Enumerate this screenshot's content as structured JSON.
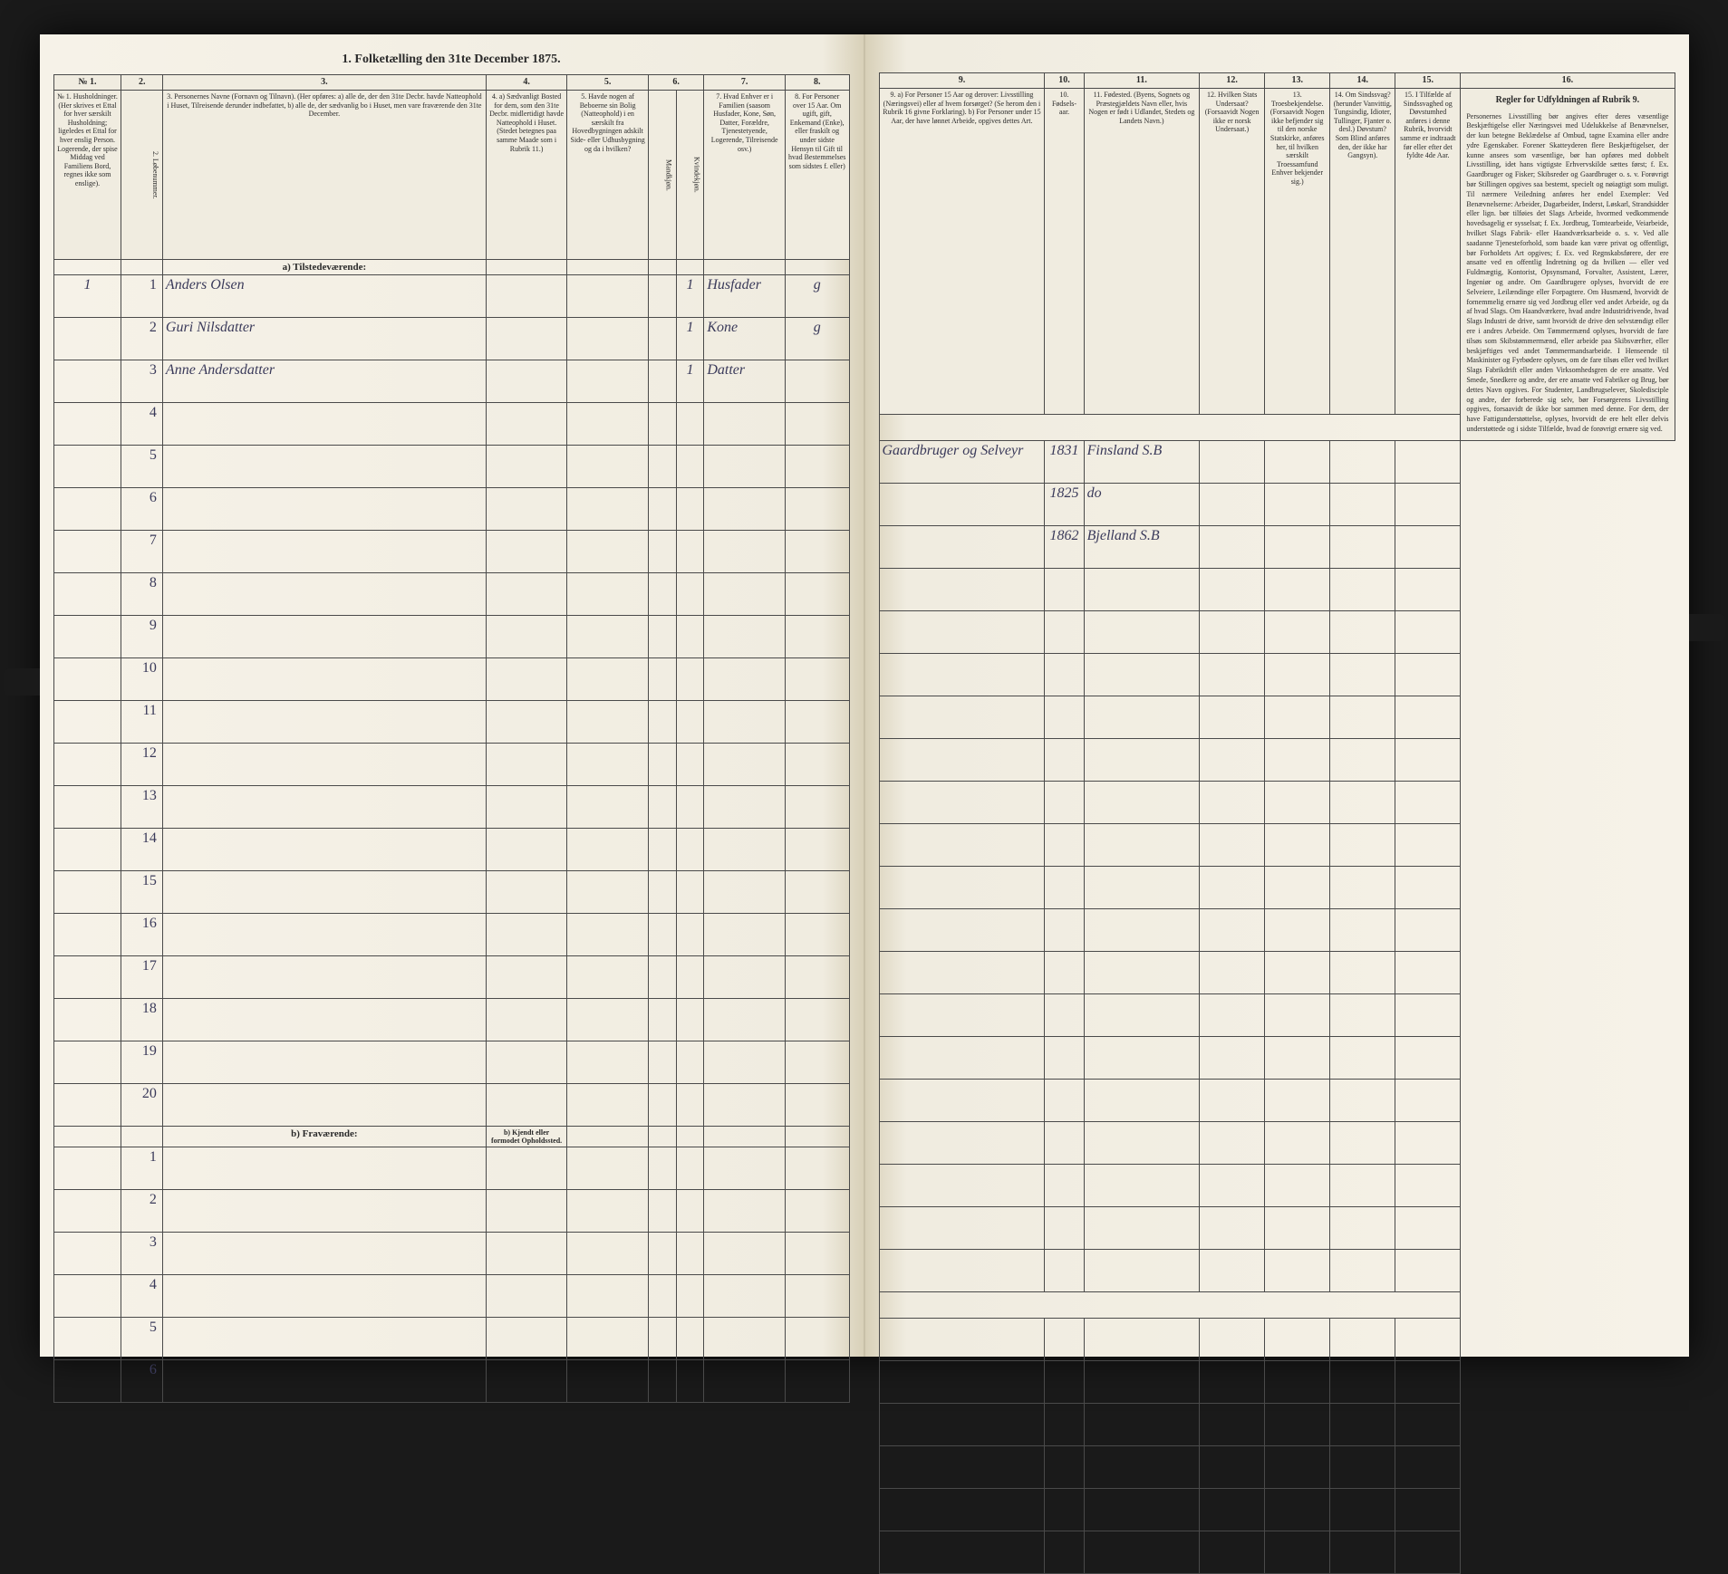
{
  "header": {
    "title_left": "1. Folketælling den 31te December 1875.",
    "title_right": ""
  },
  "columns_left": {
    "1": "№ 1.\nHusholdninger.\n(Her skrives et Ettal for hver særskilt Husholdning; ligeledes et Ettal for hver enslig Person. Logerende, der spise Middag ved Familiens Bord, regnes ikke som enslige).",
    "2": "2.\nLøbenummer.",
    "3": "3.\nPersonernes Navne (Fornavn og Tilnavn).\n(Her opføres:\na) alle de, der den 31te Decbr. havde Natteophold i Huset, Tilreisende derunder indbefattet,\nb) alle de, der sædvanlig bo i Huset, men vare fraværende den 31te December.",
    "4": "4.\na) Sædvanligt Bosted for dem, som den 31te Decbr. midlertidigt havde Natteophold i Huset.\n(Stedet betegnes paa samme Maade som i Rubrik 11.)",
    "5": "5.\nHavde nogen af Beboerne sin Bolig (Natteophold) i en særskilt fra Hovedbygningen adskilt Side- eller Udhusbygning og da i hvilken?",
    "6": "6.\nKjøn.\n(Her sættes et Ettal i vedkommende Rubrik.)",
    "6a": "Mandkjøn.",
    "6b": "Kvindekjøn.",
    "7": "7.\nHvad Enhver er i Familien\n(saasom Husfader, Kone, Søn, Datter, Forældre, Tjenestetyende, Logerende, Tilreisende osv.)",
    "8": "8.\nFor Personer over 15 Aar. Om ugift, gift, Enkemand (Enke), eller fraskilt og under sidste Hensyn til Gift til hvad Bestemmelses som sidstes f. eller)"
  },
  "columns_right": {
    "9": "9.\na) For Personer 15 Aar og derover: Livsstilling (Næringsvei) eller af hvem forsørget? (Se herom den i Rubrik 16 givne Forklaring).\nb) For Personer under 15 Aar, der have lønnet Arbeide, opgives dettes Art.",
    "10": "10.\nFødsels-aar.",
    "11": "11.\nFødested.\n(Byens, Sognets og Præstegjældets Navn eller, hvis Nogen er født i Udlandet, Stedets og Landets Navn.)",
    "12": "12.\nHvilken Stats Undersaat?\n(Forsaavidt Nogen ikke er norsk Undersaat.)",
    "13": "13.\nTroesbekjendelse.\n(Forsaavidt Nogen ikke befjender sig til den norske Statskirke, anføres her, til hvilken særskilt Troessamfund Enhver bekjender sig.)",
    "14": "14.\nOm Sindssvag? (herunder Vanvittig, Tungsindig, Idioter, Tullinger, Fjanter o. desl.) Døvstum? Som Blind anføres den, der ikke har Gangsyn).",
    "15": "15.\nI Tilfælde af Sindssvaghed og Døvstumhed anføres i denne Rubrik, hvorvidt samme er indtraadt før eller efter det fyldte 4de Aar.",
    "16": "16.\nRegler for Udfyldningen af Rubrik 9."
  },
  "sections": {
    "a": "a) Tilstedeværende:",
    "b": "b) Fraværende:",
    "b_note": "b) Kjendt eller formodet Opholdssted."
  },
  "rows": [
    {
      "n": "1",
      "hh": "1",
      "name": "Anders Olsen",
      "sex": "1",
      "fam": "Husfader",
      "civ": "g",
      "occ": "Gaardbruger og Selveyr",
      "year": "1831",
      "place": "Finsland S.B"
    },
    {
      "n": "2",
      "hh": "",
      "name": "Guri Nilsdatter",
      "sex": "1",
      "fam": "Kone",
      "civ": "g",
      "occ": "",
      "year": "1825",
      "place": "do"
    },
    {
      "n": "3",
      "hh": "",
      "name": "Anne Andersdatter",
      "sex": "1",
      "fam": "Datter",
      "civ": "",
      "occ": "",
      "year": "1862",
      "place": "Bjelland S.B"
    }
  ],
  "empty_rows_a": [
    "4",
    "5",
    "6",
    "7",
    "8",
    "9",
    "10",
    "11",
    "12",
    "13",
    "14",
    "15",
    "16",
    "17",
    "18",
    "19",
    "20"
  ],
  "empty_rows_b": [
    "1",
    "2",
    "3",
    "4",
    "5",
    "6"
  ],
  "rules_text": {
    "title": "Regler for Udfyldningen\naf\nRubrik 9.",
    "body": "Personernes Livsstilling bør angives efter deres væsentlige Beskjæftigelse eller Næringsvei med Udelukkelse af Benævnelser, der kun betegne Beklædelse af Ombud, tagne Examina eller andre ydre Egenskaber. Forener Skatteyderen flere Beskjæftigelser, der kunne ansees som væsentlige, bør han opføres med dobbelt Livsstilling, idet hans vigtigste Erhvervskilde sættes først; f. Ex. Gaardbruger og Fisker; Skibsreder og Gaardbruger o. s. v. Forøvrigt bør Stillingen opgives saa bestemt, specielt og nøiagtigt som muligt.\n\nTil nærmere Veiledning anføres her endel Exempler:\n\nVed Benævnelserne: Arbeider, Dagarbeider, Inderst, Løskarl, Strandsidder eller lign. bør tilføies det Slags Arbeide, hvormed vedkommende hovedsagelig er sysselsat; f. Ex. Jordbrug, Tomtearbeide, Veiarbeide, hvilket Slags Fabrik- eller Haandværksarbeide o. s. v.\n\nVed alle saadanne Tjenesteforhold, som baade kan være privat og offentligt, bør Forholdets Art opgives; f. Ex. ved Regnskabsførere, der ere ansatte ved en offentlig Indretning og da hvilken — eller ved Fuldmægtig, Kontorist, Opsynsmand, Forvalter, Assistent, Lærer, Ingeniør og andre.\n\nOm Gaardbrugere oplyses, hvorvidt de ere Selveiere, Leilændinge eller Forpagtere.\n\nOm Husmænd, hvorvidt de fornemmelig ernære sig ved Jordbrug eller ved andet Arbeide, og da af hvad Slags.\n\nOm Haandværkere, hvad andre Industridrivende, hvad Slags Industri de drive, samt hvorvidt de drive den selvstændigt eller ere i andres Arbeide.\n\nOm Tømmermænd oplyses, hvorvidt de fare tilsøs som Skibstømmermænd, eller arbeide paa Skibsværfter, eller beskjæftiges ved andet Tømmermandsarbeide.\n\nI Henseende til Maskinister og Fyrbødere oplyses, om de fare tilsøs eller ved hvilket Slags Fabrikdrift eller anden Virksomhedsgren de ere ansatte.\n\nVed Smede, Snedkere og andre, der ere ansatte ved Fabriker og Brug, bør dettes Navn opgives.\n\nFor Studenter, Landbrugselever, Skoledisciple og andre, der forberede sig selv, bør Forsørgerens Livsstilling opgives, forsaavidt de ikke bor sammen med denne.\n\nFor dem, der have Fattigunderstøttelse, oplyses, hvorvidt de ere helt eller delvis understøttede og i sidste Tilfælde, hvad de forøvrigt ernære sig ved."
  },
  "colors": {
    "paper": "#f4f0e6",
    "ink": "#2a2a2a",
    "handwriting": "#3a3a5a",
    "border": "#4a4a4a"
  }
}
